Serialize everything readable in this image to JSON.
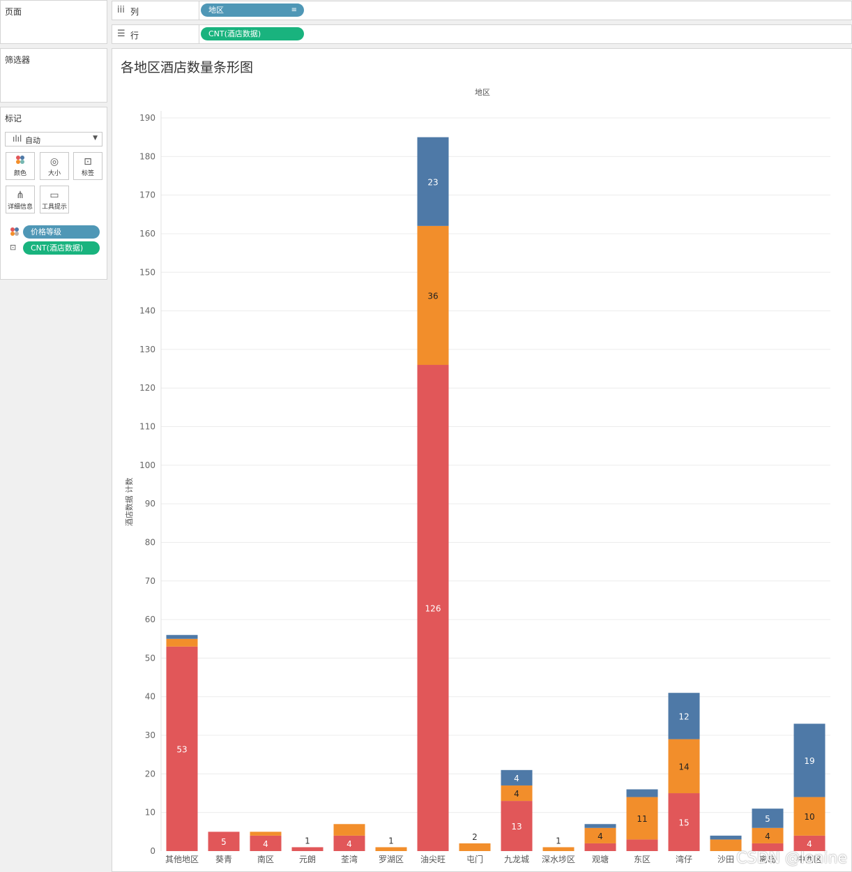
{
  "left_panel": {
    "pages_title": "页面",
    "filters_title": "筛选器",
    "marks_title": "标记",
    "mark_type": "自动",
    "mark_cards": [
      {
        "label": "颜色",
        "icon": "color-icon"
      },
      {
        "label": "大小",
        "icon": "size-icon"
      },
      {
        "label": "标签",
        "icon": "label-icon"
      },
      {
        "label": "详细信息",
        "icon": "detail-icon"
      },
      {
        "label": "工具提示",
        "icon": "tooltip-icon"
      }
    ],
    "mark_fields": [
      {
        "name": "价格等级",
        "icon": "color-icon",
        "pill_color": "#4f97b6"
      },
      {
        "name": "CNT(酒店数据)",
        "icon": "label-icon",
        "pill_color": "#19b37e"
      }
    ]
  },
  "shelves": {
    "columns_label": "列",
    "columns_field": "地区",
    "rows_label": "行",
    "rows_field": "CNT(酒店数据)"
  },
  "chart_data": {
    "type": "bar",
    "title": "各地区酒店数量条形图",
    "x_header": "地区",
    "ylabel": "酒店数据 计数",
    "ylim": [
      0,
      190
    ],
    "yticks": [
      0,
      10,
      20,
      30,
      40,
      50,
      60,
      70,
      80,
      90,
      100,
      110,
      120,
      130,
      140,
      150,
      160,
      170,
      180,
      190
    ],
    "grid": true,
    "categories": [
      "其他地区",
      "葵青",
      "南区",
      "元朗",
      "荃湾",
      "罗湖区",
      "油尖旺",
      "屯门",
      "九龙城",
      "深水埗区",
      "观塘",
      "东区",
      "湾仔",
      "沙田",
      "离岛",
      "中西区"
    ],
    "series": [
      {
        "color": "#e15759",
        "values": [
          53,
          5,
          4,
          1,
          4,
          0,
          126,
          0,
          13,
          0,
          2,
          3,
          15,
          0,
          2,
          4
        ]
      },
      {
        "color": "#f28e2b",
        "values": [
          2,
          0,
          1,
          0,
          3,
          1,
          36,
          2,
          4,
          1,
          4,
          11,
          14,
          3,
          4,
          10
        ]
      },
      {
        "color": "#4e79a7",
        "values": [
          1,
          0,
          0,
          0,
          0,
          0,
          23,
          0,
          4,
          0,
          1,
          2,
          12,
          1,
          5,
          19
        ]
      }
    ],
    "bar_labels": [
      {
        "category": "其他地区",
        "series": 0,
        "text": "53"
      },
      {
        "category": "葵青",
        "series": 0,
        "text": "5"
      },
      {
        "category": "南区",
        "series": 0,
        "text": "4"
      },
      {
        "category": "元朗",
        "series": "top",
        "text": "1"
      },
      {
        "category": "荃湾",
        "series": 0,
        "text": "4"
      },
      {
        "category": "罗湖区",
        "series": "top",
        "text": "1"
      },
      {
        "category": "油尖旺",
        "series": 0,
        "text": "126"
      },
      {
        "category": "油尖旺",
        "series": 1,
        "text": "36"
      },
      {
        "category": "油尖旺",
        "series": 2,
        "text": "23"
      },
      {
        "category": "屯门",
        "series": "top",
        "text": "2"
      },
      {
        "category": "九龙城",
        "series": 0,
        "text": "13"
      },
      {
        "category": "九龙城",
        "series": 1,
        "text": "4"
      },
      {
        "category": "九龙城",
        "series": 2,
        "text": "4"
      },
      {
        "category": "深水埗区",
        "series": "top",
        "text": "1"
      },
      {
        "category": "观塘",
        "series": 1,
        "text": "4"
      },
      {
        "category": "东区",
        "series": 1,
        "text": "11"
      },
      {
        "category": "湾仔",
        "series": 0,
        "text": "15"
      },
      {
        "category": "湾仔",
        "series": 1,
        "text": "14"
      },
      {
        "category": "湾仔",
        "series": 2,
        "text": "12"
      },
      {
        "category": "离岛",
        "series": 1,
        "text": "4"
      },
      {
        "category": "离岛",
        "series": 2,
        "text": "5"
      },
      {
        "category": "中西区",
        "series": 0,
        "text": "4"
      },
      {
        "category": "中西区",
        "series": 1,
        "text": "10"
      },
      {
        "category": "中西区",
        "series": 2,
        "text": "19"
      }
    ]
  },
  "watermark": "CSDN @lonine"
}
